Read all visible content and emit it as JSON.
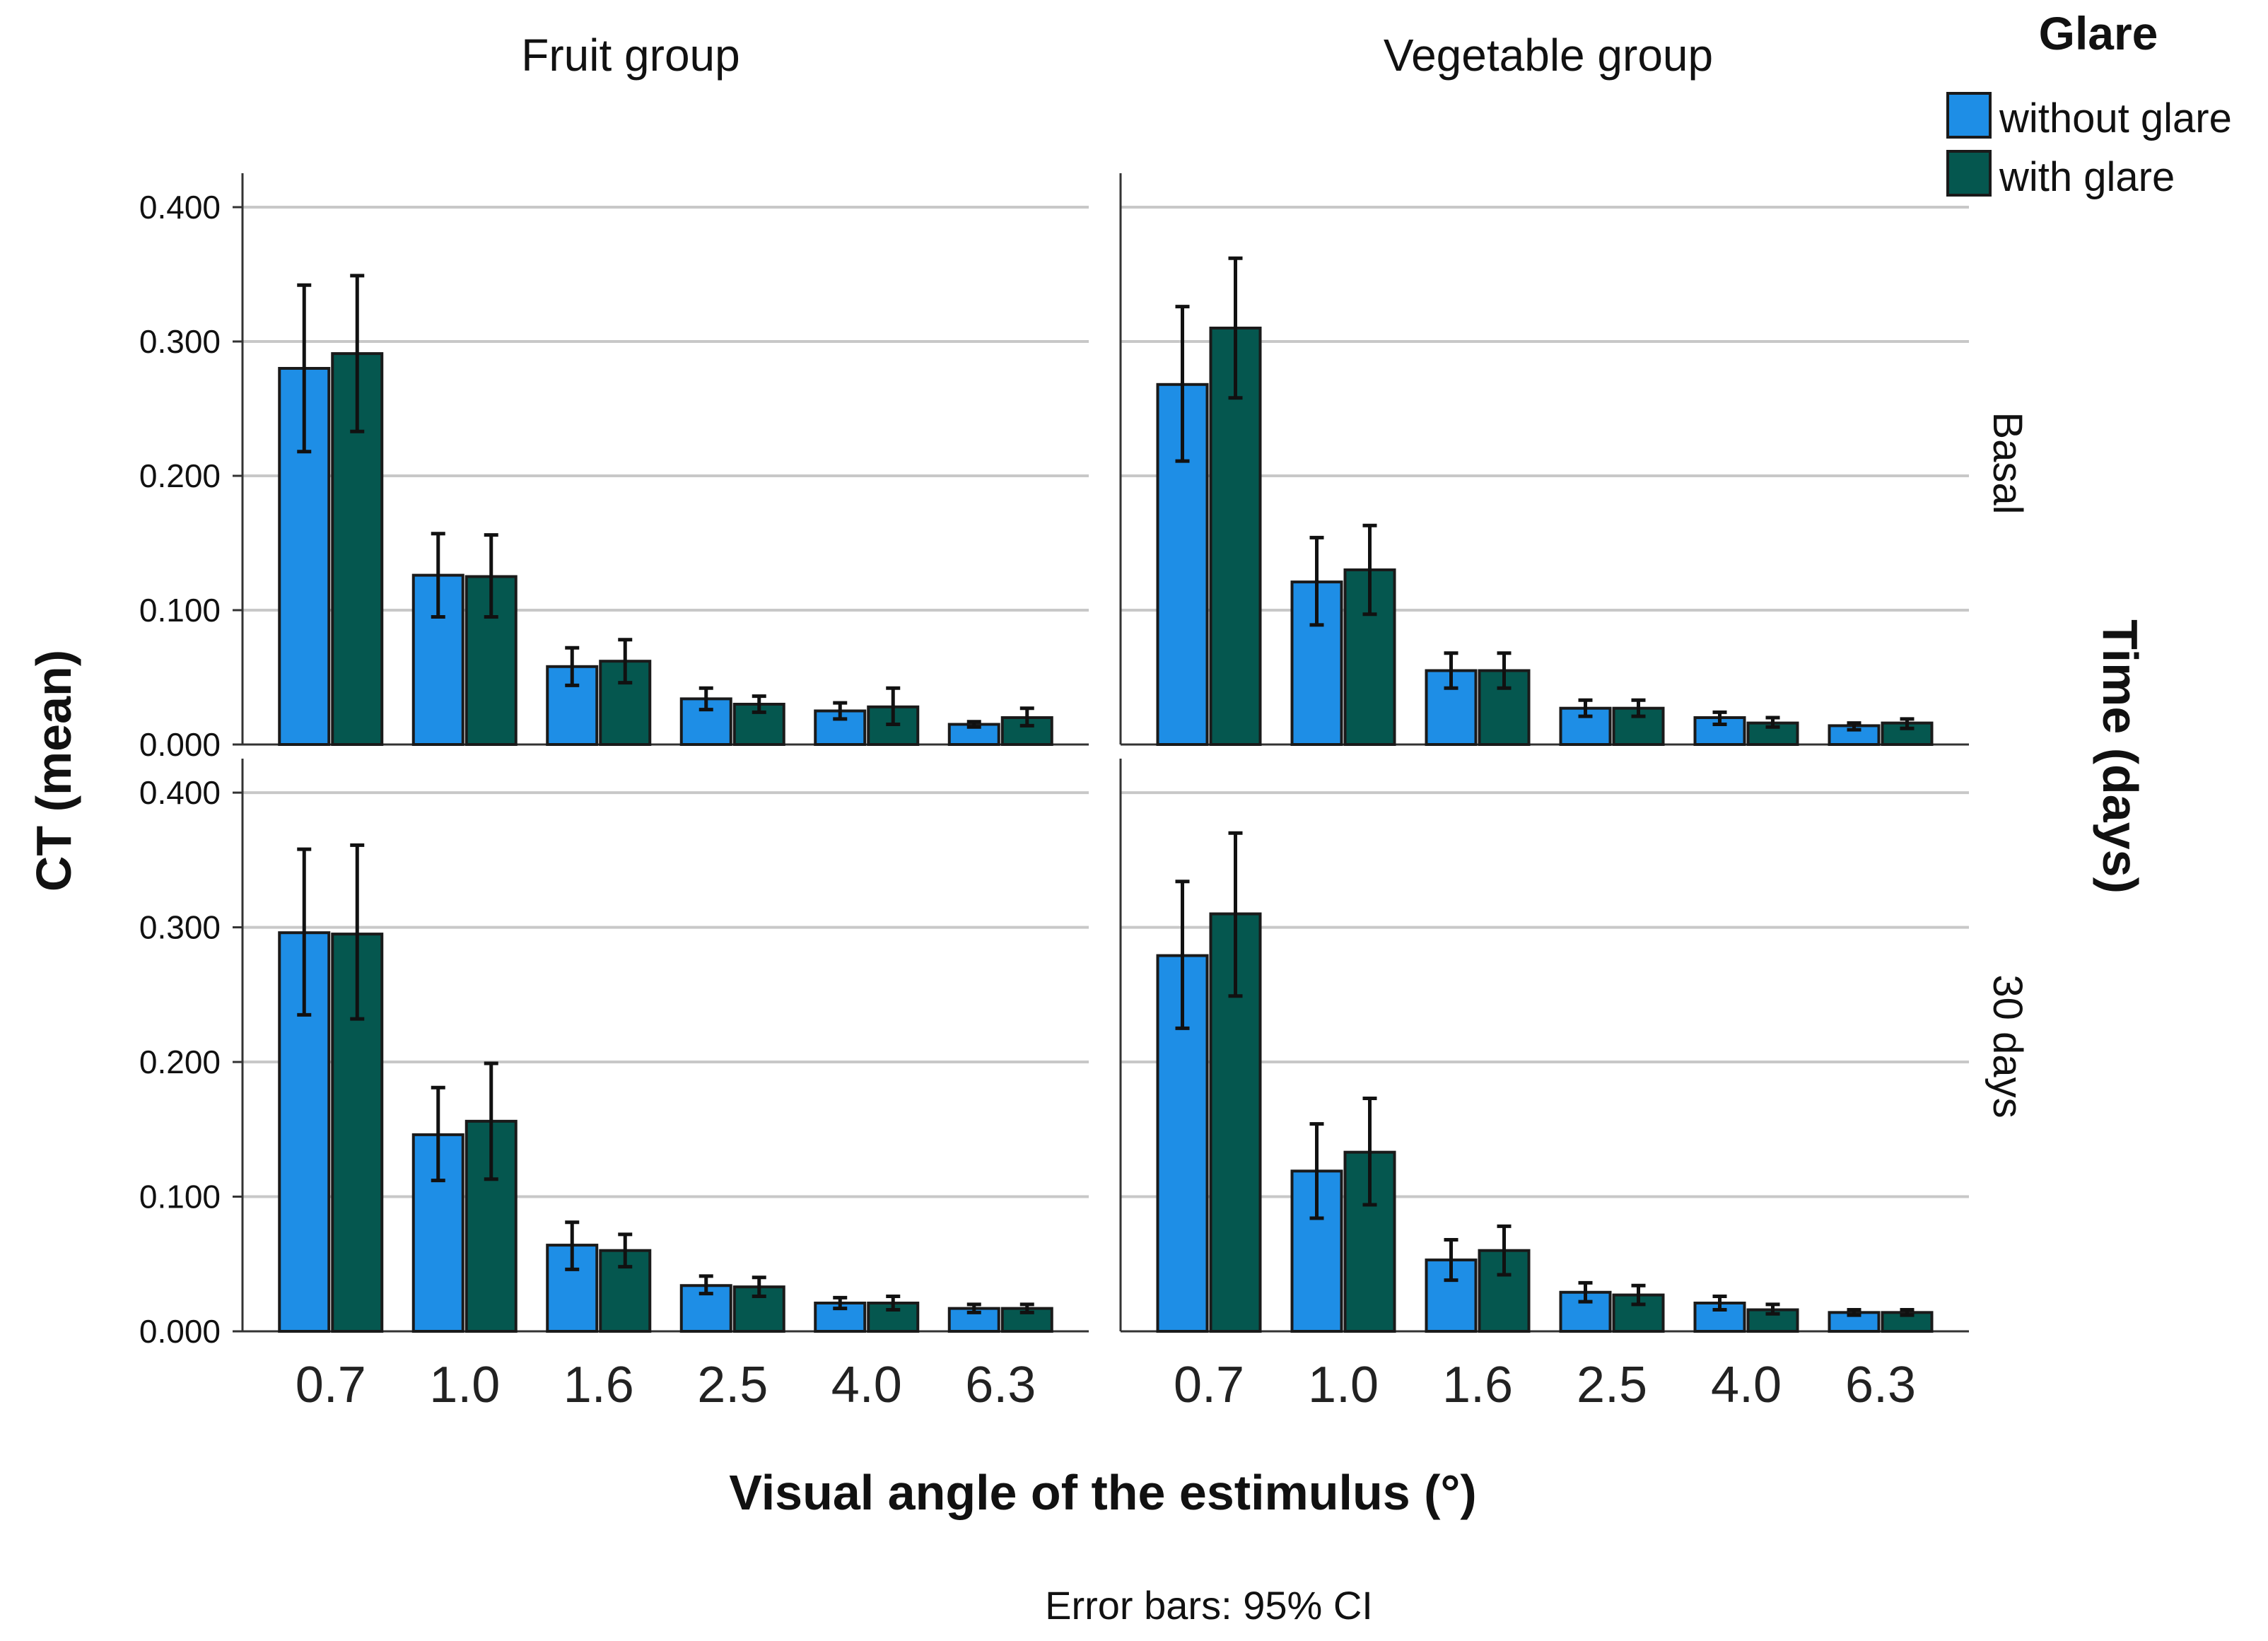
{
  "chart_data": {
    "type": "bar",
    "layout": "2x2 panels",
    "column_titles": [
      "Fruit group",
      "Vegetable group"
    ],
    "row_titles": [
      "Basal",
      "30 days"
    ],
    "categories": [
      "0.7",
      "1.0",
      "1.6",
      "2.5",
      "4.0",
      "6.3"
    ],
    "series_names": [
      "without glare",
      "with glare"
    ],
    "colors": {
      "without glare": "#1e8ee6",
      "with glare": "#05574f"
    },
    "xlabel": "Visual angle of the estimulus (°)",
    "ylabel": "CT (mean)",
    "row_axis_title": "Time (days)",
    "legend_title": "Glare",
    "legend_position": "top-right",
    "footnote": "Error bars: 95% CI",
    "yticks": [
      "0.000",
      "0.100",
      "0.200",
      "0.300",
      "0.400"
    ],
    "ylim": [
      0,
      0.42
    ],
    "grid": true,
    "panels": [
      {
        "column": "Fruit group",
        "row": "Basal",
        "series": [
          {
            "name": "without glare",
            "values": [
              0.28,
              0.126,
              0.058,
              0.034,
              0.025,
              0.015
            ],
            "ci_low": [
              0.218,
              0.095,
              0.044,
              0.026,
              0.019,
              0.013
            ],
            "ci_high": [
              0.342,
              0.157,
              0.072,
              0.042,
              0.031,
              0.017
            ]
          },
          {
            "name": "with glare",
            "values": [
              0.291,
              0.125,
              0.062,
              0.03,
              0.028,
              0.02
            ],
            "ci_low": [
              0.233,
              0.095,
              0.046,
              0.024,
              0.015,
              0.014
            ],
            "ci_high": [
              0.349,
              0.156,
              0.078,
              0.036,
              0.042,
              0.027
            ]
          }
        ]
      },
      {
        "column": "Vegetable group",
        "row": "Basal",
        "series": [
          {
            "name": "without glare",
            "values": [
              0.268,
              0.121,
              0.055,
              0.027,
              0.02,
              0.014
            ],
            "ci_low": [
              0.211,
              0.089,
              0.042,
              0.021,
              0.015,
              0.011
            ],
            "ci_high": [
              0.326,
              0.154,
              0.068,
              0.033,
              0.024,
              0.016
            ]
          },
          {
            "name": "with glare",
            "values": [
              0.31,
              0.13,
              0.055,
              0.027,
              0.016,
              0.016
            ],
            "ci_low": [
              0.258,
              0.097,
              0.042,
              0.021,
              0.013,
              0.012
            ],
            "ci_high": [
              0.362,
              0.163,
              0.068,
              0.033,
              0.02,
              0.019
            ]
          }
        ]
      },
      {
        "column": "Fruit group",
        "row": "30 days",
        "series": [
          {
            "name": "without glare",
            "values": [
              0.296,
              0.146,
              0.064,
              0.034,
              0.021,
              0.017
            ],
            "ci_low": [
              0.235,
              0.112,
              0.046,
              0.028,
              0.017,
              0.014
            ],
            "ci_high": [
              0.358,
              0.181,
              0.081,
              0.041,
              0.025,
              0.02
            ]
          },
          {
            "name": "with glare",
            "values": [
              0.295,
              0.156,
              0.06,
              0.033,
              0.021,
              0.017
            ],
            "ci_low": [
              0.232,
              0.113,
              0.048,
              0.026,
              0.016,
              0.014
            ],
            "ci_high": [
              0.361,
              0.199,
              0.072,
              0.04,
              0.026,
              0.02
            ]
          }
        ]
      },
      {
        "column": "Vegetable group",
        "row": "30 days",
        "series": [
          {
            "name": "without glare",
            "values": [
              0.279,
              0.119,
              0.053,
              0.029,
              0.021,
              0.014
            ],
            "ci_low": [
              0.225,
              0.084,
              0.038,
              0.022,
              0.016,
              0.012
            ],
            "ci_high": [
              0.334,
              0.154,
              0.068,
              0.036,
              0.026,
              0.016
            ]
          },
          {
            "name": "with glare",
            "values": [
              0.31,
              0.133,
              0.06,
              0.027,
              0.016,
              0.014
            ],
            "ci_low": [
              0.249,
              0.094,
              0.042,
              0.02,
              0.013,
              0.012
            ],
            "ci_high": [
              0.37,
              0.173,
              0.078,
              0.034,
              0.02,
              0.016
            ]
          }
        ]
      }
    ]
  }
}
